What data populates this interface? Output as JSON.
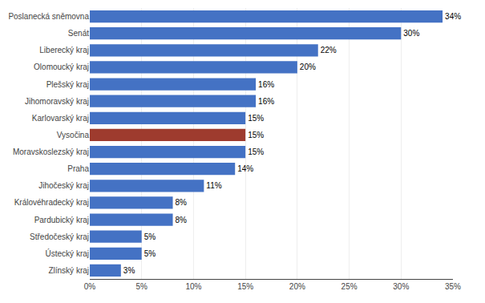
{
  "chart_data": {
    "type": "bar",
    "orientation": "horizontal",
    "categories": [
      "Poslanecká sněmovna",
      "Senát",
      "Liberecký kraj",
      "Olomoucký kraj",
      "Plešský kraj",
      "Jihomoravský kraj",
      "Karlovarský kraj",
      "Vysočina",
      "Moravskoslezský kraj",
      "Praha",
      "Jihočeský kraj",
      "Královéhradecký kraj",
      "Pardubický kraj",
      "Středočeský kraj",
      "Ústecký kraj",
      "Zlínský kraj"
    ],
    "values": [
      34,
      30,
      22,
      20,
      16,
      16,
      15,
      15,
      15,
      14,
      11,
      8,
      8,
      5,
      5,
      3
    ],
    "value_labels": [
      "34%",
      "30%",
      "22%",
      "20%",
      "16%",
      "16%",
      "15%",
      "15%",
      "15%",
      "14%",
      "11%",
      "8%",
      "8%",
      "5%",
      "5%",
      "3%"
    ],
    "colors": [
      "#4472C4",
      "#4472C4",
      "#4472C4",
      "#4472C4",
      "#4472C4",
      "#4472C4",
      "#4472C4",
      "#9E3B2E",
      "#4472C4",
      "#4472C4",
      "#4472C4",
      "#4472C4",
      "#4472C4",
      "#4472C4",
      "#4472C4",
      "#4472C4"
    ],
    "xlim": [
      0,
      35
    ],
    "xticks": [
      {
        "value": 0,
        "label": "0%"
      },
      {
        "value": 5,
        "label": "5%"
      },
      {
        "value": 10,
        "label": "10%"
      },
      {
        "value": 15,
        "label": "15%"
      },
      {
        "value": 20,
        "label": "20%"
      },
      {
        "value": 25,
        "label": "25%"
      },
      {
        "value": 30,
        "label": "30%"
      },
      {
        "value": 35,
        "label": "35%"
      }
    ],
    "grid": true,
    "data_labels": true
  }
}
